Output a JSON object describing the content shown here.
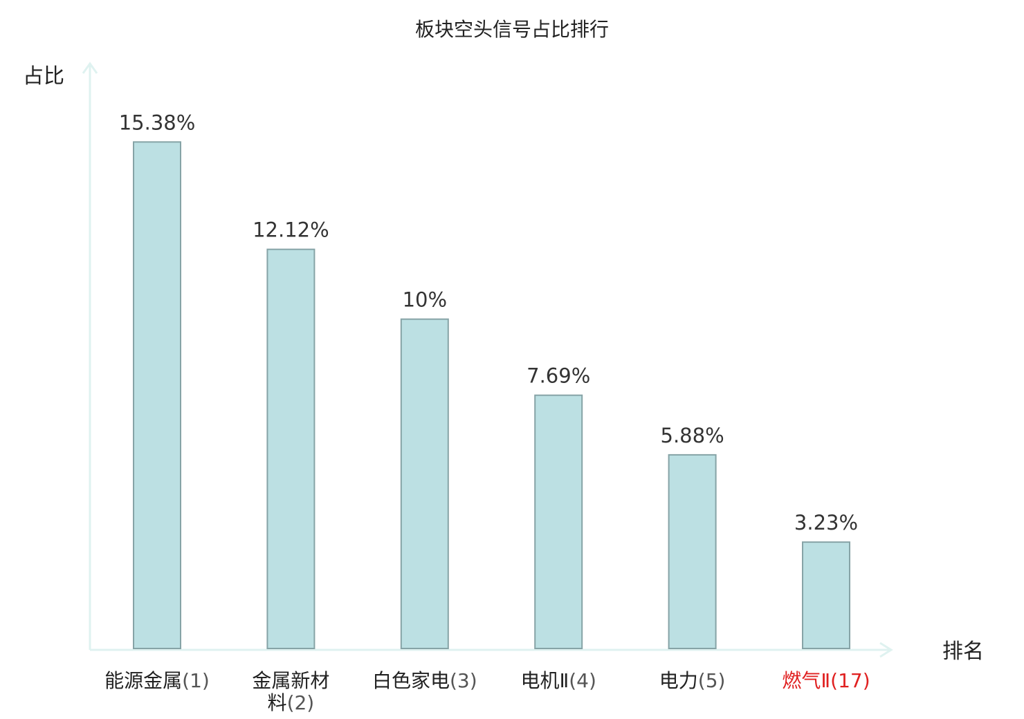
{
  "chart_data": {
    "type": "bar",
    "title": "板块空头信号占比排行",
    "ylabel": "占比",
    "xlabel": "排名",
    "categories": [
      {
        "name": "能源金属",
        "rank": "(1)"
      },
      {
        "name": "金属新材料",
        "rank": "(2)"
      },
      {
        "name": "白色家电",
        "rank": "(3)"
      },
      {
        "name": "电机Ⅱ",
        "rank": "(4)"
      },
      {
        "name": "电力",
        "rank": "(5)"
      },
      {
        "name": "燃气Ⅱ",
        "rank": "(17)"
      }
    ],
    "values": [
      15.38,
      12.12,
      10,
      7.69,
      5.88,
      3.23
    ],
    "value_labels": [
      "15.38%",
      "12.12%",
      "10%",
      "7.69%",
      "5.88%",
      "3.23%"
    ],
    "highlight_index": 5,
    "ylim": [
      0,
      16.5
    ]
  },
  "colors": {
    "bar_fill": "#bce0e3",
    "bar_stroke": "#86a3a6",
    "axis": "#dff2f0",
    "highlight": "#e02020"
  }
}
